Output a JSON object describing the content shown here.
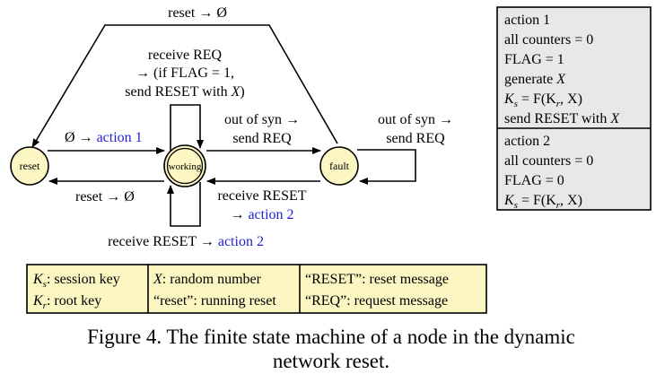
{
  "states": {
    "reset": "reset",
    "working": "working",
    "fault": "fault"
  },
  "transitions": {
    "top_reset": "reset → Ø",
    "receive_req_l1": "receive REQ",
    "receive_req_l2": "→ (if FLAG = 1,",
    "receive_req_l3": "send RESET with ",
    "receive_req_l3_var": "X",
    "receive_req_l3_end": ")",
    "empty_to_action1": "Ø → ",
    "action1_link": "action 1",
    "out_of_syn_1a": "out of syn →",
    "out_of_syn_1b": "send REQ",
    "out_of_syn_2a": "out of syn →",
    "out_of_syn_2b": "send REQ",
    "reset_to_empty": "reset → Ø",
    "receive_reset_1a": "receive RESET",
    "receive_reset_1b": "→ ",
    "action2_link_a": "action 2",
    "receive_reset_2": "receive RESET → ",
    "action2_link_b": "action 2"
  },
  "actions": {
    "action1": {
      "title": "action 1",
      "line1": "all counters = 0",
      "line2": "FLAG = 1",
      "line3_pre": "generate ",
      "line3_var": "X",
      "line4_K": "K",
      "line4_s": "s",
      "line4_mid": " = F(K",
      "line4_r": "r",
      "line4_end": ", X)",
      "line5_pre": "send RESET with ",
      "line5_var": "X"
    },
    "action2": {
      "title": "action 2",
      "line1": "all counters = 0",
      "line2": "FLAG = 0",
      "line3_K": "K",
      "line3_s": "s",
      "line3_mid": " = F(K",
      "line3_r": "r",
      "line3_end": ", X)"
    }
  },
  "legend": {
    "ks_K": "K",
    "ks_sub": "s",
    "ks_text": ": session key",
    "kr_K": "K",
    "kr_sub": "r",
    "kr_text": ": root key",
    "x_var": "X",
    "x_text": ": random number",
    "reset_run": "“reset”: running reset",
    "reset_msg": "“RESET”: reset message",
    "req_msg": "“REQ”: request message"
  },
  "caption": {
    "line1": "Figure 4. The finite state machine of a node in the dynamic",
    "line2": "network reset."
  },
  "colors": {
    "state_fill": "#fbf6c2",
    "action_box_fill": "#e8e8e8",
    "legend_fill": "#fbf6c2",
    "action_text": "#1f1fd0"
  }
}
